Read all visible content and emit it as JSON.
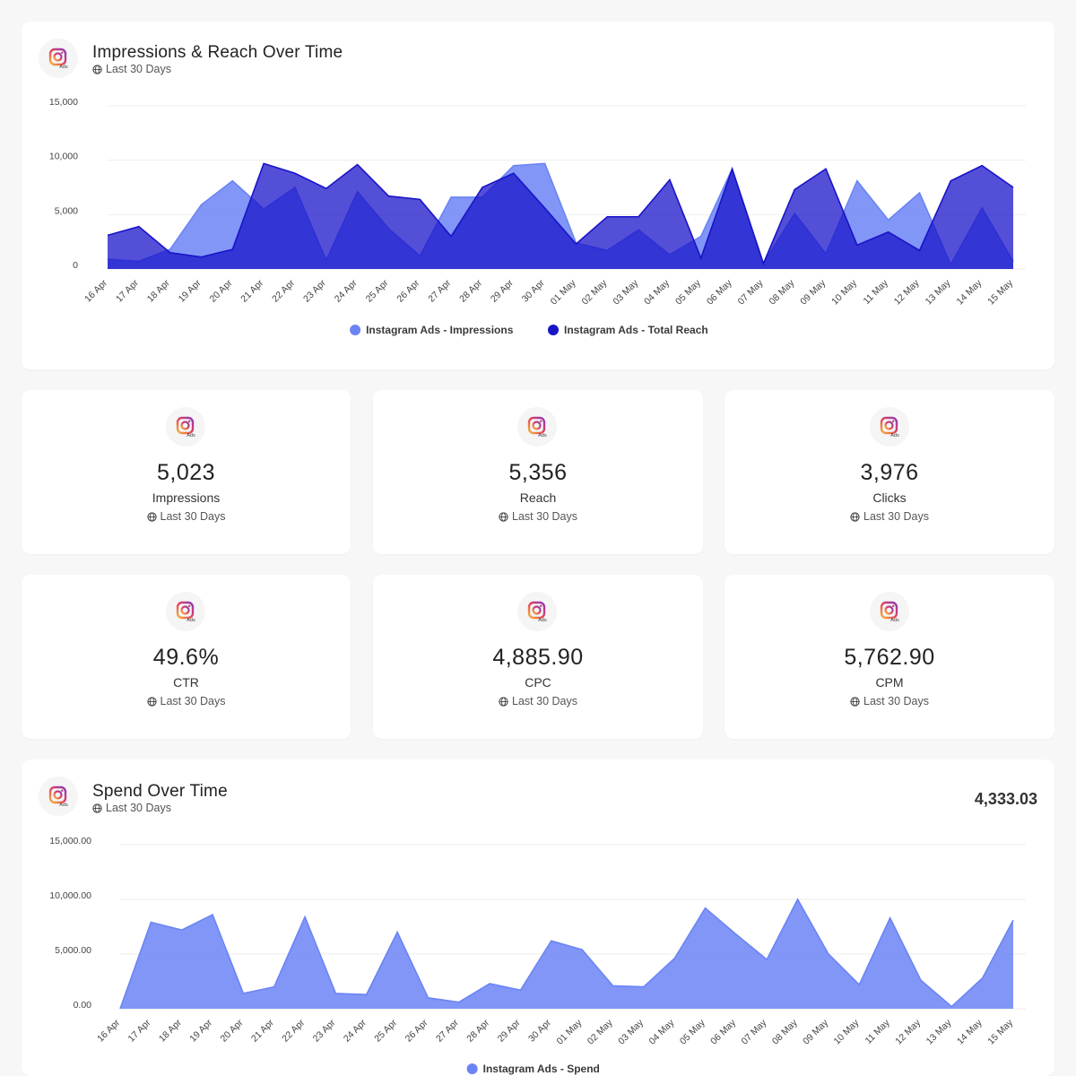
{
  "colors": {
    "impressions": "#6b84f5",
    "reach": "#1a14c9",
    "spend": "#6b84f5"
  },
  "icon": "instagram-ads-icon",
  "impressions_chart": {
    "title": "Impressions & Reach Over Time",
    "subtitle": "Last 30 Days"
  },
  "kpis": [
    {
      "value": "5,023",
      "label": "Impressions",
      "sub": "Last 30 Days"
    },
    {
      "value": "5,356",
      "label": "Reach",
      "sub": "Last 30 Days"
    },
    {
      "value": "3,976",
      "label": "Clicks",
      "sub": "Last 30 Days"
    },
    {
      "value": "49.6%",
      "label": "CTR",
      "sub": "Last 30 Days"
    },
    {
      "value": "4,885.90",
      "label": "CPC",
      "sub": "Last 30 Days"
    },
    {
      "value": "5,762.90",
      "label": "CPM",
      "sub": "Last 30 Days"
    }
  ],
  "spend_chart": {
    "title": "Spend Over Time",
    "subtitle": "Last 30 Days",
    "total": "4,333.03"
  },
  "chart_data": [
    {
      "type": "area",
      "title": "Impressions & Reach Over Time",
      "x": [
        "16 Apr",
        "17 Apr",
        "18 Apr",
        "19 Apr",
        "20 Apr",
        "21 Apr",
        "22 Apr",
        "23 Apr",
        "24 Apr",
        "25 Apr",
        "26 Apr",
        "27 Apr",
        "28 Apr",
        "29 Apr",
        "30 Apr",
        "01 May",
        "02 May",
        "03 May",
        "04 May",
        "05 May",
        "06 May",
        "07 May",
        "08 May",
        "09 May",
        "10 May",
        "11 May",
        "12 May",
        "13 May",
        "14 May",
        "15 May"
      ],
      "y_ticks": [
        "0",
        "5,000",
        "10,000",
        "15,000"
      ],
      "ylim": [
        0,
        15000
      ],
      "grid": true,
      "legend": "bottom-center",
      "series": [
        {
          "name": "Instagram Ads - Impressions",
          "values": [
            900,
            700,
            1800,
            5900,
            8100,
            5500,
            7500,
            800,
            7100,
            3700,
            1200,
            6600,
            6600,
            9500,
            9700,
            2400,
            1700,
            3600,
            1300,
            3000,
            9200,
            500,
            5100,
            1400,
            8100,
            4500,
            7000,
            400,
            5600,
            700
          ]
        },
        {
          "name": "Instagram Ads - Total Reach",
          "values": [
            3100,
            3900,
            1500,
            1100,
            1800,
            9700,
            8800,
            7400,
            9600,
            6700,
            6400,
            3000,
            7500,
            8800,
            5600,
            2300,
            4800,
            4800,
            8200,
            1000,
            9200,
            500,
            7300,
            9200,
            2200,
            3400,
            1700,
            8100,
            9500,
            7500
          ]
        }
      ]
    },
    {
      "type": "area",
      "title": "Spend Over Time",
      "x": [
        "16 Apr",
        "17 Apr",
        "18 Apr",
        "19 Apr",
        "20 Apr",
        "21 Apr",
        "22 Apr",
        "23 Apr",
        "24 Apr",
        "25 Apr",
        "26 Apr",
        "27 Apr",
        "28 Apr",
        "29 Apr",
        "30 Apr",
        "01 May",
        "02 May",
        "03 May",
        "04 May",
        "05 May",
        "06 May",
        "07 May",
        "08 May",
        "09 May",
        "10 May",
        "11 May",
        "12 May",
        "13 May",
        "14 May",
        "15 May"
      ],
      "y_ticks": [
        "0.00",
        "5,000.00",
        "10,000.00",
        "15,000.00"
      ],
      "ylim": [
        0,
        15000
      ],
      "grid": true,
      "legend": "bottom-center",
      "series": [
        {
          "name": "Instagram Ads - Spend",
          "values": [
            0,
            7900,
            7200,
            8600,
            1400,
            2000,
            8400,
            1400,
            1300,
            7000,
            1000,
            600,
            2300,
            1700,
            6200,
            5400,
            2100,
            2000,
            4600,
            9200,
            6800,
            4500,
            10000,
            5000,
            2200,
            8300,
            2600,
            200,
            2800,
            8100
          ]
        }
      ]
    }
  ]
}
